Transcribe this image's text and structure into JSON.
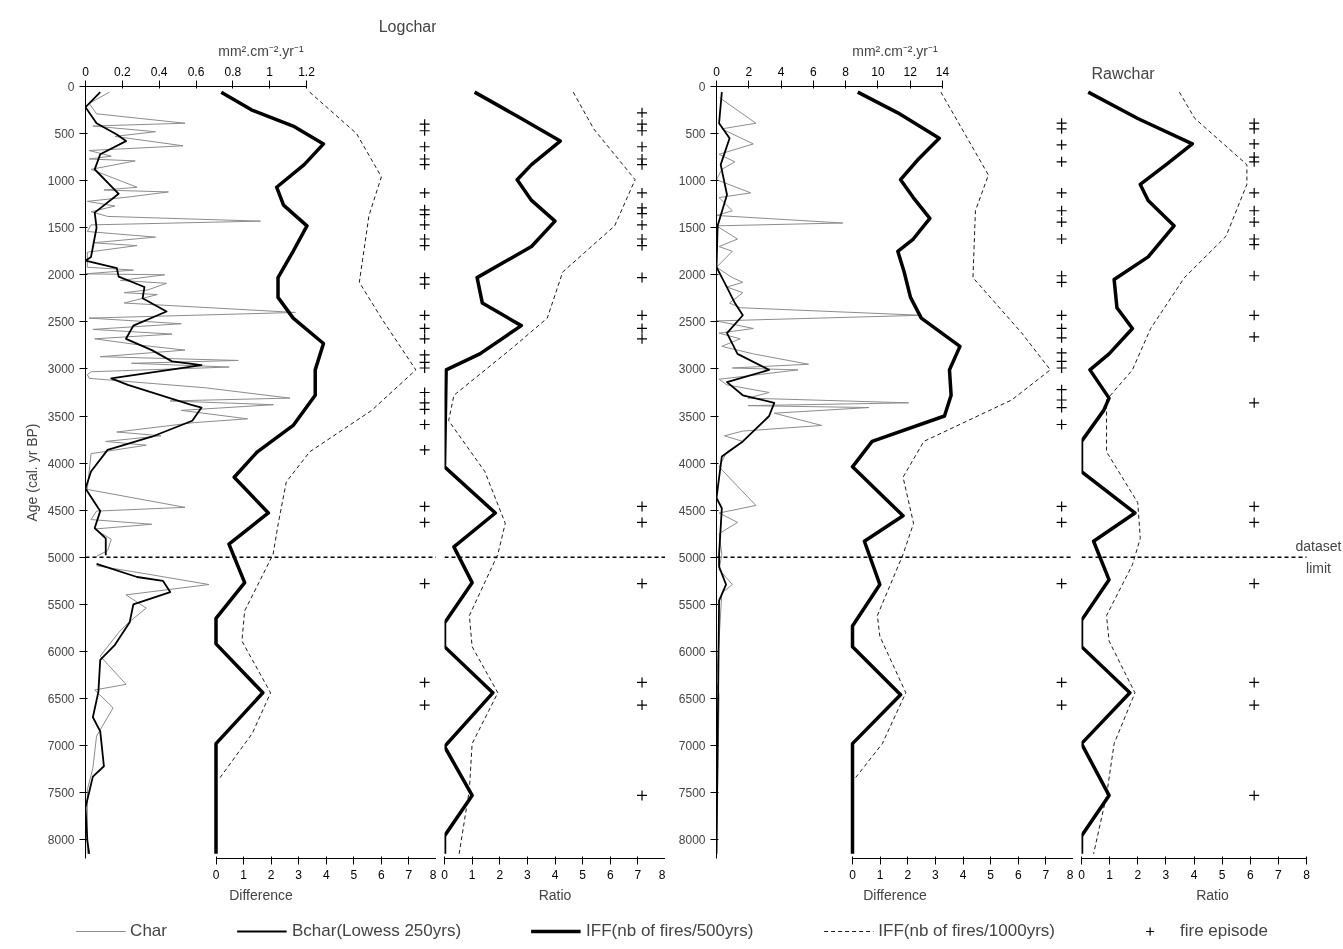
{
  "chart_data": [
    {
      "type": "line",
      "xlabel": "mm².cm⁻².yr⁻¹",
      "ylabel": "Age (cal. yr BP)",
      "xlim": [
        0,
        1.2
      ],
      "xticks": [
        0,
        0.2,
        0.4,
        0.6,
        0.8,
        1,
        1.2
      ],
      "ylim": [
        8200,
        0
      ],
      "yticks": [
        0,
        500,
        1000,
        1500,
        2000,
        2500,
        3000,
        3500,
        4000,
        4500,
        5000,
        5500,
        6000,
        6500,
        7000,
        7500,
        8000
      ],
      "legend": "bottom",
      "series": [
        {
          "name": "Char",
          "color": "#8c8c8c",
          "x": [
            0.13,
            0.02,
            0.06,
            0.54,
            0.04,
            0.38,
            0.16,
            0.53,
            0.02,
            0.14,
            0.02,
            0.27,
            0.03,
            0.28,
            0.1,
            0.45,
            0.25,
            0.01,
            0.16,
            0.03,
            0.12,
            0.95,
            0.03,
            0.01,
            0.38,
            0.04,
            0.28,
            0.01,
            0.01,
            0.26,
            0,
            0.43,
            0.19,
            0.44,
            0.34,
            0.21,
            0.39,
            0.21,
            1.14,
            0.02,
            0.52,
            0.04,
            0.47,
            0.05,
            0.31,
            0.54,
            0.08,
            0.83,
            0.25,
            0.78,
            0.03,
            0.01,
            0.02,
            0.65,
            1.11,
            0.46,
            1.02,
            0.52,
            0.88,
            0.59,
            0.17,
            0.41,
            0.11,
            0.33,
            0.03,
            0.01,
            0.54,
            0.06,
            0.03,
            0.36,
            0.05,
            0.14,
            0.12,
            0.06,
            null,
            0.06,
            0.34,
            0.67,
            0.22,
            0.33,
            0.23,
            0.18,
            0.08,
            0.22,
            0.05,
            0.15,
            0.06,
            0.04,
            0.01,
            0.01
          ],
          "values": [
            60,
            180,
            290,
            390,
            420,
            480,
            530,
            630,
            680,
            740,
            770,
            790,
            880,
            1070,
            1100,
            1120,
            1170,
            1220,
            1270,
            1330,
            1380,
            1430,
            1470,
            1540,
            1600,
            1660,
            1690,
            1760,
            1920,
            1950,
            1990,
            2000,
            2060,
            2090,
            2160,
            2190,
            2210,
            2300,
            2400,
            2460,
            2520,
            2580,
            2630,
            2680,
            2750,
            2800,
            2870,
            2910,
            2940,
            2980,
            3030,
            3060,
            3100,
            3200,
            3310,
            3340,
            3380,
            3440,
            3530,
            3570,
            3670,
            3710,
            3770,
            3810,
            3900,
            4280,
            4470,
            4510,
            4600,
            4650,
            4700,
            4810,
            4930,
            4990,
            null,
            5090,
            5180,
            5290,
            5400,
            5540,
            5700,
            5800,
            6050,
            6350,
            6410,
            6600,
            6900,
            7240,
            7470,
            8150
          ]
        },
        {
          "name": "Bchar(Lowess 250yrs)",
          "color": "#000000",
          "x": [
            0.08,
            0,
            0.06,
            0.17,
            0.22,
            0.08,
            0.05,
            0.08,
            0.18,
            0.05,
            0.06,
            0.03,
            0,
            0.17,
            0.18,
            0.32,
            0.31,
            0.44,
            0.26,
            0.22,
            0.36,
            0.47,
            0.63,
            0.14,
            0.23,
            0.57,
            0.63,
            0.58,
            0.36,
            0.12,
            0.03,
            0,
            0.08,
            0.05,
            0.11,
            0.11,
            null,
            0.06,
            0.28,
            0.42,
            0.46,
            0.26,
            0.24,
            0.16,
            0.08,
            0.07,
            0.04,
            0.08,
            0.1,
            0.04,
            0,
            0.01,
            0.02
          ],
          "values": [
            60,
            220,
            390,
            510,
            580,
            720,
            880,
            940,
            1140,
            1340,
            1500,
            1810,
            1850,
            1930,
            2020,
            2130,
            2250,
            2390,
            2540,
            2680,
            2800,
            2920,
            2960,
            3100,
            3170,
            3380,
            3410,
            3550,
            3720,
            3860,
            4090,
            4270,
            4510,
            4690,
            4800,
            4980,
            null,
            5070,
            5210,
            5250,
            5370,
            5500,
            5690,
            5930,
            6090,
            6430,
            6700,
            6850,
            7220,
            7330,
            7660,
            8010,
            8150
          ]
        }
      ]
    },
    {
      "type": "line",
      "title": "Logchar",
      "xlabel": "Difference",
      "xlim": [
        0,
        8
      ],
      "xticks": [
        0,
        1,
        2,
        3,
        4,
        5,
        6,
        7,
        8
      ],
      "ylim": [
        8200,
        0
      ],
      "tick_labels": "x",
      "legend": "bottom",
      "series": [
        {
          "name": "IFF(nb of fires/500yrs)",
          "color": "#000000",
          "x": [
            0.19,
            1.3,
            2.8,
            3.9,
            3.2,
            2.2,
            2.45,
            3.3,
            2.8,
            2.25,
            2.25,
            2.8,
            3.9,
            3.6,
            3.6,
            2.8,
            1.5,
            0.66,
            1.9,
            0.47,
            1.04,
            0,
            0,
            1.7,
            0,
            0
          ],
          "values": [
            60,
            250,
            420,
            610,
            830,
            1070,
            1260,
            1480,
            1750,
            2030,
            2240,
            2460,
            2730,
            3010,
            3280,
            3600,
            3880,
            4150,
            4530,
            4860,
            5270,
            5650,
            5920,
            6440,
            6980,
            8150
          ]
        },
        {
          "name": "IFF(nb of fires/1000yrs)",
          "color": "#000000",
          "line_style": "dashed",
          "x": [
            3.4,
            5.1,
            6.0,
            5.55,
            5.2,
            6.0,
            7.25,
            5.65,
            3.4,
            2.55,
            2.26,
            2.07,
            1.04,
            0.94,
            1.98,
            1.32,
            0.1
          ],
          "values": [
            60,
            500,
            960,
            1370,
            2080,
            2460,
            3010,
            3440,
            3880,
            4200,
            4640,
            4970,
            5570,
            5890,
            6440,
            6870,
            7360
          ]
        },
        {
          "name": "fire episode",
          "type": "scatter",
          "marker": "cross",
          "color": "#000000",
          "x": [
            7.57,
            7.57,
            7.57,
            7.57,
            7.57,
            7.57,
            7.57,
            7.57,
            7.57,
            7.57,
            7.57,
            7.57,
            7.57,
            7.57,
            7.57,
            7.57,
            7.57,
            7.57,
            7.57,
            7.57,
            7.57,
            7.57,
            7.57,
            7.57,
            7.57,
            7.57,
            7.57,
            7.57,
            7.57
          ],
          "values": [
            400,
            470,
            640,
            770,
            830,
            1130,
            1310,
            1360,
            1470,
            1620,
            1690,
            2030,
            2100,
            2430,
            2570,
            2680,
            2850,
            2930,
            2990,
            3250,
            3360,
            3430,
            3590,
            3860,
            4460,
            4630,
            5280,
            6330,
            6570
          ]
        }
      ]
    },
    {
      "type": "line",
      "xlabel": "Ratio",
      "xlim": [
        0,
        8
      ],
      "xticks": [
        0,
        1,
        2,
        3,
        4,
        5,
        6,
        7,
        8
      ],
      "ylim": [
        8200,
        0
      ],
      "tick_labels": "x",
      "ref_lines": [
        {
          "axis": "y",
          "value": 5000,
          "color": "#000000",
          "line_style": "dashed"
        }
      ],
      "series": [
        {
          "color": "#000000",
          "x": [
            1.09,
            2.78,
            4.19,
            3.15,
            2.63,
            3.15,
            4.0,
            3.15,
            1.18,
            1.37,
            2.78,
            1.28,
            0.06,
            0,
            1.84,
            0.34,
            1.0,
            0,
            0,
            1.75,
            0,
            1.0,
            0,
            0
          ],
          "values": [
            60,
            340,
            580,
            830,
            990,
            1210,
            1430,
            1700,
            2030,
            2300,
            2540,
            2840,
            3010,
            4040,
            4530,
            4890,
            5270,
            5700,
            5950,
            6440,
            7010,
            7530,
            7960,
            8150
          ]
        },
        {
          "color": "#000000",
          "line_style": "dashed",
          "x": [
            4.66,
            5.4,
            6.9,
            6.16,
            4.28,
            3.72,
            2.4,
            0.34,
            0.15,
            1.46,
            2.2,
            1.93,
            0.9,
            1.0,
            1.93,
            1.0,
            0.9,
            0.53
          ],
          "values": [
            60,
            450,
            990,
            1480,
            1970,
            2460,
            2790,
            3280,
            3550,
            4090,
            4640,
            4970,
            5620,
            5950,
            6440,
            6980,
            7470,
            8150
          ]
        },
        {
          "type": "scatter",
          "marker": "cross",
          "color": "#000000",
          "x": [
            7.15,
            7.15,
            7.15,
            7.15,
            7.15,
            7.15,
            7.15,
            7.15,
            7.15,
            7.15,
            7.15,
            7.15,
            7.15,
            7.15,
            7.15,
            7.15,
            7.15,
            7.15,
            7.15,
            7.15,
            7.15,
            7.15
          ],
          "values": [
            280,
            400,
            470,
            640,
            770,
            830,
            1130,
            1290,
            1350,
            1470,
            1620,
            1690,
            2030,
            2430,
            2570,
            2680,
            4460,
            4630,
            5280,
            6330,
            6570,
            7530
          ]
        }
      ]
    },
    {
      "type": "line",
      "xlabel": "mm².cm⁻².yr⁻¹",
      "xlim": [
        0,
        14
      ],
      "xticks": [
        0,
        2,
        4,
        6,
        8,
        10,
        12,
        14
      ],
      "ylim": [
        8200,
        0
      ],
      "yticks": [
        0,
        500,
        1000,
        1500,
        2000,
        2500,
        3000,
        3500,
        4000,
        4500,
        5000,
        5500,
        6000,
        6500,
        7000,
        7500,
        8000
      ],
      "series": [
        {
          "color": "#8c8c8c",
          "x": [
            0.2,
            2.44,
            0.33,
            2.28,
            0.16,
            1.14,
            0.33,
            0,
            2.12,
            0.16,
            0.98,
            0,
            7.82,
            0,
            1.3,
            0.16,
            0.98,
            0,
            0.98,
            1.63,
            0.65,
            1.63,
            0.81,
            1.47,
            12.7,
            0,
            2.28,
            0.16,
            1.47,
            0.33,
            2.28,
            5.7,
            0.98,
            5.05,
            0.16,
            0.65,
            3.26,
            1.95,
            11.9,
            1.95,
            9.45,
            3.58,
            6.51,
            1.63,
            0.49,
            1.63,
            0.65,
            0.16,
            2.44,
            0.16,
            1.3,
            0.16,
            0.33,
            0.16,
            0.98,
            0.33,
            0,
            0.16,
            0
          ],
          "values": [
            120,
            390,
            450,
            610,
            720,
            800,
            880,
            990,
            1130,
            1180,
            1320,
            1370,
            1450,
            1480,
            1620,
            1700,
            1750,
            1920,
            2030,
            2080,
            2130,
            2190,
            2300,
            2350,
            2430,
            2490,
            2570,
            2620,
            2680,
            2760,
            2840,
            2950,
            2990,
            3010,
            3110,
            3170,
            3250,
            3310,
            3360,
            3390,
            3410,
            3470,
            3600,
            3660,
            3710,
            3770,
            3880,
            4040,
            4450,
            4530,
            4630,
            4750,
            4970,
            5130,
            5290,
            5380,
            6330,
            6460,
            8150
          ]
        },
        {
          "color": "#000000",
          "x": [
            0.33,
            0.16,
            0.81,
            0.26,
            0.65,
            0.07,
            0,
            0.49,
            1.14,
            1.63,
            0.65,
            1.3,
            3.26,
            0.65,
            1.63,
            3.58,
            3.26,
            1.63,
            0.33,
            0,
            0.33,
            0.16,
            0.16,
            0.59,
            0.16,
            0
          ],
          "values": [
            60,
            390,
            550,
            830,
            1150,
            1480,
            1920,
            2080,
            2300,
            2430,
            2620,
            2840,
            3010,
            3140,
            3280,
            3360,
            3500,
            3770,
            3930,
            4370,
            4480,
            4970,
            5100,
            5290,
            5460,
            8150
          ]
        }
      ]
    },
    {
      "type": "line",
      "xlabel": "Difference",
      "xlim": [
        0,
        8
      ],
      "xticks": [
        0,
        1,
        2,
        3,
        4,
        5,
        6,
        7,
        8
      ],
      "ylim": [
        8200,
        0
      ],
      "tick_labels": "x",
      "series": [
        {
          "color": "#000000",
          "x": [
            0.19,
            1.64,
            3.14,
            2.39,
            1.74,
            2.2,
            2.8,
            2.2,
            1.64,
            1.87,
            2.1,
            2.49,
            3.89,
            3.51,
            3.57,
            3.33,
            0.71,
            0,
            1.83,
            0.43,
            0.99,
            0,
            0,
            1.74,
            0,
            0
          ],
          "values": [
            60,
            280,
            550,
            770,
            990,
            1180,
            1400,
            1620,
            1750,
            1970,
            2240,
            2460,
            2760,
            3010,
            3280,
            3500,
            3770,
            4040,
            4560,
            4830,
            5290,
            5730,
            5950,
            6460,
            6980,
            8150
          ]
        },
        {
          "color": "#000000",
          "line_style": "dashed",
          "x": [
            3.2,
            4.92,
            4.45,
            4.36,
            6.13,
            7.16,
            5.76,
            2.58,
            1.83,
            2.21,
            1.83,
            0.9,
            0.99,
            1.93,
            1.08,
            0.06
          ],
          "values": [
            60,
            940,
            1320,
            2030,
            2620,
            3010,
            3330,
            3770,
            4150,
            4640,
            4970,
            5620,
            5840,
            6440,
            6980,
            7360
          ]
        },
        {
          "type": "scatter",
          "marker": "cross",
          "color": "#000000",
          "x": [
            7.57,
            7.57,
            7.57,
            7.57,
            7.57,
            7.57,
            7.57,
            7.57,
            7.57,
            7.57,
            7.57,
            7.57,
            7.57,
            7.57,
            7.57,
            7.57,
            7.57,
            7.57,
            7.57,
            7.57,
            7.57,
            7.57,
            7.57,
            7.57,
            7.57
          ],
          "values": [
            390,
            450,
            620,
            800,
            1130,
            1320,
            1440,
            1620,
            2010,
            2080,
            2430,
            2570,
            2670,
            2830,
            2920,
            2990,
            3220,
            3330,
            3410,
            3590,
            4460,
            4630,
            5280,
            6330,
            6570
          ]
        }
      ]
    },
    {
      "type": "line",
      "title": "Rawchar",
      "xlabel": "Ratio",
      "xlim": [
        0,
        8
      ],
      "xticks": [
        0,
        1,
        2,
        3,
        4,
        5,
        6,
        7,
        8
      ],
      "ylim": [
        8200,
        0
      ],
      "tick_labels": "x",
      "ref_lines": [
        {
          "axis": "y",
          "value": 5000,
          "color": "#000000",
          "line_style": "dashed",
          "label": "dataset\nlimit"
        }
      ],
      "series": [
        {
          "color": "#000000",
          "x": [
            0.24,
            2.0,
            3.94,
            3.01,
            2.09,
            2.37,
            3.29,
            2.37,
            1.16,
            1.26,
            1.81,
            0.98,
            0.3,
            0.98,
            0.79,
            0,
            0,
            1.9,
            0.43,
            0.98,
            0,
            0,
            1.72,
            0,
            0.98,
            0,
            0
          ],
          "values": [
            60,
            340,
            610,
            830,
            1040,
            1210,
            1480,
            1810,
            2050,
            2350,
            2570,
            2840,
            3010,
            3310,
            3440,
            3770,
            4090,
            4530,
            4830,
            5240,
            5670,
            5950,
            6440,
            6980,
            7530,
            7960,
            8150
          ]
        },
        {
          "color": "#000000",
          "line_style": "dashed",
          "x": [
            3.48,
            4.03,
            5.88,
            5.88,
            5.14,
            3.66,
            2.46,
            1.81,
            0.89,
            0.89,
            2.0,
            2.09,
            1.81,
            0.89,
            0.98,
            1.9,
            1.16,
            0.89,
            0.43
          ],
          "values": [
            60,
            340,
            830,
            1040,
            1590,
            2030,
            2570,
            3010,
            3330,
            3880,
            4420,
            4800,
            5080,
            5620,
            5890,
            6440,
            6980,
            7530,
            8150
          ]
        },
        {
          "type": "scatter",
          "marker": "cross",
          "color": "#000000",
          "x": [
            6.14,
            6.14,
            6.14,
            6.14,
            6.14,
            6.14,
            6.14,
            6.14,
            6.14,
            6.14,
            6.14,
            6.14,
            6.14,
            6.14,
            6.14,
            6.14,
            6.14,
            6.14,
            6.14,
            6.14
          ],
          "values": [
            390,
            450,
            610,
            750,
            800,
            1130,
            1320,
            1440,
            1620,
            1680,
            2010,
            2430,
            2660,
            3360,
            4460,
            4630,
            5280,
            6330,
            6570,
            7530
          ]
        }
      ]
    }
  ]
}
